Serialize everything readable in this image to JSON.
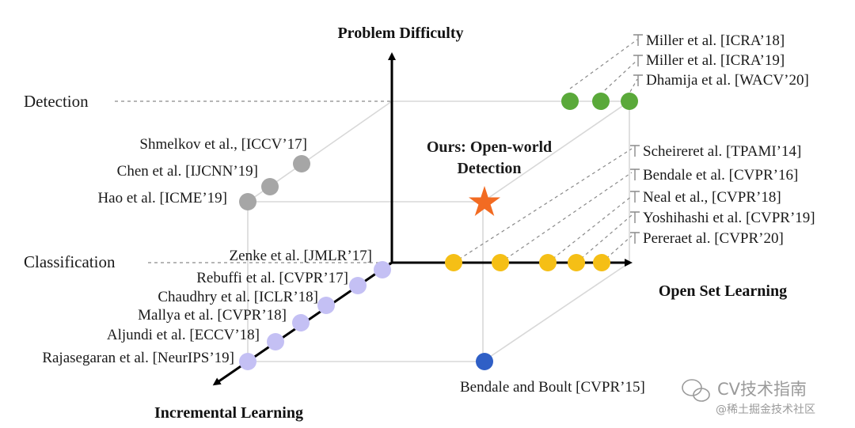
{
  "axes": {
    "problem_difficulty": "Problem Difficulty",
    "open_set_learning": "Open Set Learning",
    "incremental_learning": "Incremental Learning"
  },
  "levels": {
    "detection": "Detection",
    "classification": "Classification"
  },
  "ours": {
    "line1": "Ours: Open-world",
    "line2": "Detection",
    "color": "#f26b22"
  },
  "detection_open_set_refs": [
    "Miller et al. [ICRA’18]",
    "Miller et al. [ICRA’19]",
    "Dhamija et al. [WACV’20]"
  ],
  "detection_incremental_refs": [
    "Shmelkov et al., [ICCV’17]",
    "Chen et al. [IJCNN’19]",
    "Hao et al. [ICME’19]"
  ],
  "open_set_refs": [
    "Scheireret al. [TPAMI’14]",
    "Bendale et al. [CVPR’16]",
    "Neal et al., [CVPR’18]",
    "Yoshihashi et al. [CVPR’19]",
    "Pereraet al. [CVPR’20]"
  ],
  "incremental_refs": [
    "Zenke et al. [JMLR’17]",
    "Rebuffi et al. [CVPR’17]",
    "Chaudhry et al. [ICLR’18]",
    "Mallya et al. [CVPR’18]",
    "Aljundi et al. [ECCV’18]",
    "Rajasegaran et al. [NeurIPS’19]"
  ],
  "open_incremental_ref": "Bendale and Boult [CVPR’15]",
  "colors": {
    "detection_open_set": "#5aa93a",
    "detection_incremental": "#a6a6a6",
    "open_set": "#f5bf16",
    "incremental": "#c4c0f4",
    "open_incremental": "#2f5fc6"
  },
  "watermark": {
    "title": "CV技术指南",
    "subtitle": "@稀土掘金技术社区"
  }
}
